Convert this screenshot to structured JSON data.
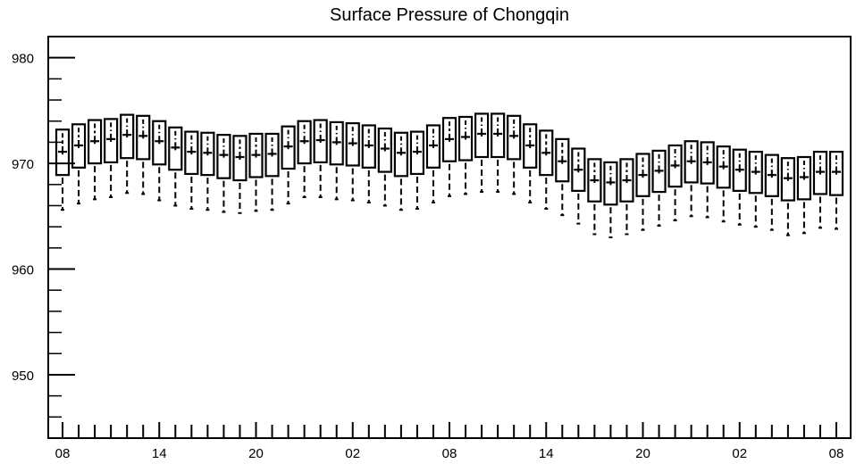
{
  "chart_data": {
    "type": "boxplot",
    "title": "Surface Pressure of Chongqin",
    "xlabel": "",
    "ylabel": "",
    "ylim": [
      944,
      982
    ],
    "yticks": [
      950,
      960,
      970,
      980
    ],
    "x_tick_labels": [
      "08",
      "14",
      "20",
      "02",
      "08",
      "14",
      "20",
      "02",
      "08"
    ],
    "x_tick_hours": [
      0,
      6,
      12,
      18,
      24,
      30,
      36,
      42,
      48
    ],
    "grid": false,
    "legend": "none",
    "box_interval_hours": 1,
    "series": [
      {
        "hour_offset": [
          0,
          1,
          2,
          3,
          4,
          5,
          6,
          7,
          8,
          9,
          10,
          11,
          12,
          13,
          14,
          15,
          16,
          17,
          18,
          19,
          20,
          21,
          22,
          23,
          24,
          25,
          26,
          27,
          28,
          29,
          30,
          31,
          32,
          33,
          34,
          35,
          36,
          37,
          38,
          39,
          40,
          41,
          42,
          43,
          44,
          45,
          46,
          47,
          48
        ],
        "q3": [
          973.2,
          973.7,
          974.1,
          974.2,
          974.6,
          974.5,
          974.0,
          973.4,
          973.0,
          972.9,
          972.7,
          972.6,
          972.8,
          972.8,
          973.5,
          974.0,
          974.1,
          973.9,
          973.8,
          973.6,
          973.3,
          972.9,
          973.0,
          973.6,
          974.3,
          974.4,
          974.7,
          974.7,
          974.5,
          973.7,
          973.1,
          972.3,
          971.4,
          970.4,
          970.1,
          970.4,
          970.9,
          971.2,
          971.7,
          972.1,
          972.0,
          971.6,
          971.3,
          971.1,
          970.8,
          970.5,
          970.6,
          971.1,
          971.1
        ],
        "median": [
          971.1,
          971.7,
          972.1,
          972.3,
          972.7,
          972.6,
          972.1,
          971.5,
          971.1,
          971.0,
          970.8,
          970.6,
          970.8,
          970.9,
          971.6,
          972.1,
          972.2,
          972.0,
          971.9,
          971.7,
          971.4,
          971.0,
          971.1,
          971.7,
          972.3,
          972.5,
          972.8,
          972.8,
          972.6,
          971.7,
          971.0,
          970.2,
          969.4,
          968.4,
          968.2,
          968.4,
          968.9,
          969.3,
          969.8,
          970.2,
          970.1,
          969.7,
          969.4,
          969.2,
          968.9,
          968.6,
          968.7,
          969.2,
          969.2
        ],
        "q1": [
          968.9,
          969.6,
          970.0,
          970.1,
          970.5,
          970.4,
          969.9,
          969.4,
          969.0,
          968.9,
          968.6,
          968.4,
          968.7,
          968.8,
          969.5,
          970.0,
          970.1,
          969.9,
          969.8,
          969.6,
          969.2,
          968.8,
          969.0,
          969.6,
          970.2,
          970.3,
          970.6,
          970.6,
          970.4,
          969.6,
          968.9,
          968.3,
          967.4,
          966.4,
          966.1,
          966.4,
          966.9,
          967.3,
          967.8,
          968.2,
          968.1,
          967.7,
          967.4,
          967.2,
          966.9,
          966.5,
          966.6,
          967.1,
          967.0
        ],
        "whisker_low": [
          965.6,
          966.2,
          966.6,
          966.8,
          967.2,
          967.1,
          966.5,
          966.0,
          965.7,
          965.6,
          965.4,
          965.3,
          965.5,
          965.6,
          966.2,
          966.8,
          966.8,
          966.6,
          966.5,
          966.3,
          966.0,
          965.6,
          965.7,
          966.3,
          966.9,
          967.1,
          967.3,
          967.3,
          967.1,
          966.3,
          965.7,
          965.1,
          964.3,
          963.3,
          963.0,
          963.3,
          963.7,
          964.1,
          964.6,
          965.0,
          964.9,
          964.5,
          964.2,
          964.0,
          963.7,
          963.2,
          963.4,
          963.9,
          963.8
        ]
      }
    ]
  }
}
